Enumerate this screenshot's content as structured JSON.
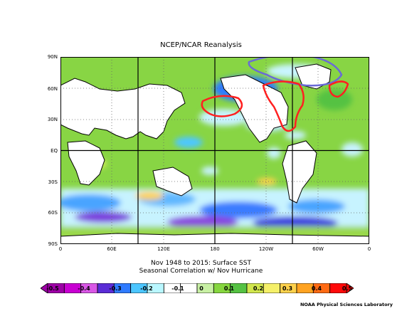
{
  "map": {
    "title": "NCEP/NCAR Reanalysis",
    "subtitle_line1": "Nov 1948 to 2015: Surface SST",
    "subtitle_line2": "Seasonal Correlation w/ Nov Hurricane",
    "credit": "NOAA Physical Sciences Laboratory",
    "lat_labels": [
      "90N",
      "60N",
      "30N",
      "EQ",
      "30S",
      "60S",
      "90S"
    ],
    "lon_labels": [
      "0",
      "60E",
      "120E",
      "180",
      "120W",
      "60W",
      "0"
    ],
    "colorbar": {
      "labels": [
        "-0.5",
        "-0.4",
        "-0.3",
        "-0.2",
        "-0.1",
        "0",
        "0.1",
        "0.2",
        "0.3",
        "0.4",
        "0.5"
      ],
      "colors": [
        "#9d00a6",
        "#c800d2",
        "#d957e6",
        "#5a2cd6",
        "#2f7bff",
        "#4cc6ff",
        "#b9f7ff",
        "#ffffff",
        "#ffffff",
        "#c8f0a4",
        "#86d63f",
        "#55c243",
        "#d1e64d",
        "#f5f069",
        "#ffd24c",
        "#ffa321",
        "#ff6a13",
        "#ff0909"
      ]
    },
    "annotations": {
      "red_outline_color": "#ff2020",
      "blue_outline_color": "#6a6ad6"
    }
  }
}
